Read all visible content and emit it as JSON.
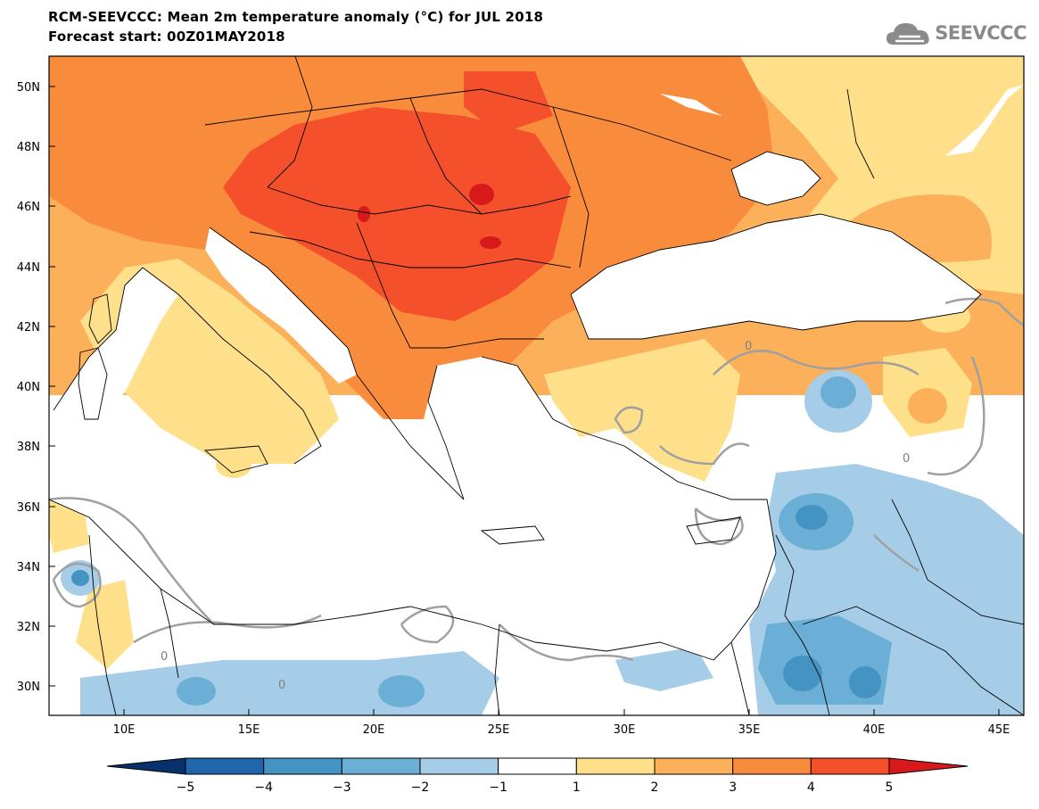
{
  "header": {
    "title": "RCM-SEEVCCC: Mean 2m temperature anomaly (°C) for JUL 2018",
    "subtitle": "Forecast start: 00Z01MAY2018"
  },
  "logo": {
    "text": "SEEVCCC",
    "icon": "cloud-icon"
  },
  "map": {
    "lon_range": [
      7,
      46
    ],
    "lat_range": [
      29,
      51
    ],
    "lat_ticks": [
      "30N",
      "32N",
      "34N",
      "36N",
      "38N",
      "40N",
      "42N",
      "44N",
      "46N",
      "48N",
      "50N"
    ],
    "lon_ticks": [
      "10E",
      "15E",
      "20E",
      "25E",
      "30E",
      "35E",
      "40E",
      "45E"
    ],
    "contour_labels": [
      "0",
      "0",
      "0",
      "0"
    ]
  },
  "colorbar": {
    "labels": [
      "−5",
      "−4",
      "−3",
      "−2",
      "−1",
      "1",
      "2",
      "3",
      "4",
      "5"
    ],
    "colors": [
      "#08306b",
      "#2166ac",
      "#4393c3",
      "#6baed6",
      "#a6cde8",
      "#ffffff",
      "#fee08b",
      "#fdb05a",
      "#f98c3c",
      "#f4502c",
      "#d7191c"
    ]
  }
}
